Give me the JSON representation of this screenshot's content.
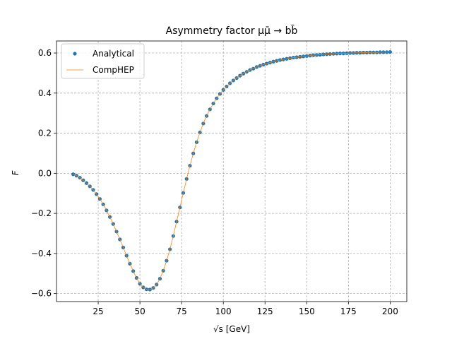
{
  "chart_data": {
    "type": "scatter",
    "title": "Asymmetry factor μμ̄ → bb̄",
    "xlabel": "√s [GeV]",
    "ylabel": "F",
    "xlim": [
      0,
      210
    ],
    "ylim": [
      -0.64,
      0.66
    ],
    "xticks": [
      25,
      50,
      75,
      100,
      125,
      150,
      175,
      200
    ],
    "yticks": [
      -0.6,
      -0.4,
      -0.2,
      0.0,
      0.2,
      0.4,
      0.6
    ],
    "xtick_labels": [
      "25",
      "50",
      "75",
      "100",
      "125",
      "150",
      "175",
      "200"
    ],
    "ytick_labels": [
      "−0.6",
      "−0.4",
      "−0.2",
      "0.0",
      "0.2",
      "0.4",
      "0.6"
    ],
    "grid": true,
    "legend_position": "top-left",
    "legend": [
      "Analytical",
      "CompHEP"
    ],
    "series": [
      {
        "name": "Analytical",
        "style": "markers",
        "color": "#1f77b4",
        "x": [
          10,
          12,
          14,
          16,
          18,
          20,
          22,
          24,
          26,
          28,
          30,
          32,
          34,
          36,
          38,
          40,
          42,
          44,
          46,
          48,
          50,
          52,
          54,
          56,
          58,
          60,
          62,
          64,
          66,
          68,
          70,
          72,
          74,
          76,
          78,
          80,
          82,
          84,
          86,
          88,
          90,
          92,
          94,
          96,
          98,
          100,
          102,
          104,
          106,
          108,
          110,
          112,
          114,
          116,
          118,
          120,
          122,
          124,
          126,
          128,
          130,
          132,
          134,
          136,
          138,
          140,
          142,
          144,
          146,
          148,
          150,
          152,
          154,
          156,
          158,
          160,
          162,
          164,
          166,
          168,
          170,
          172,
          174,
          176,
          178,
          180,
          182,
          184,
          186,
          188,
          190,
          192,
          194,
          196,
          198,
          200
        ],
        "y": [
          -0.005,
          -0.012,
          -0.022,
          -0.035,
          -0.049,
          -0.065,
          -0.083,
          -0.104,
          -0.128,
          -0.155,
          -0.185,
          -0.218,
          -0.253,
          -0.291,
          -0.33,
          -0.37,
          -0.411,
          -0.451,
          -0.488,
          -0.522,
          -0.551,
          -0.569,
          -0.579,
          -0.58,
          -0.572,
          -0.555,
          -0.526,
          -0.486,
          -0.436,
          -0.379,
          -0.313,
          -0.241,
          -0.17,
          -0.098,
          -0.028,
          0.038,
          0.099,
          0.155,
          0.204,
          0.248,
          0.286,
          0.319,
          0.348,
          0.374,
          0.396,
          0.416,
          0.433,
          0.449,
          0.463,
          0.475,
          0.487,
          0.497,
          0.506,
          0.515,
          0.522,
          0.53,
          0.536,
          0.542,
          0.547,
          0.552,
          0.557,
          0.561,
          0.565,
          0.568,
          0.571,
          0.574,
          0.577,
          0.579,
          0.581,
          0.583,
          0.585,
          0.587,
          0.589,
          0.59,
          0.591,
          0.593,
          0.594,
          0.595,
          0.596,
          0.597,
          0.598,
          0.598,
          0.599,
          0.6,
          0.6,
          0.601,
          0.601,
          0.602,
          0.602,
          0.603,
          0.603,
          0.603,
          0.604,
          0.604,
          0.604,
          0.605
        ]
      },
      {
        "name": "CompHEP",
        "style": "line",
        "color": "#ff7f0e",
        "x": [
          10,
          12,
          14,
          16,
          18,
          20,
          22,
          24,
          26,
          28,
          30,
          32,
          34,
          36,
          38,
          40,
          42,
          44,
          46,
          48,
          50,
          52,
          54,
          56,
          58,
          60,
          62,
          64,
          66,
          68,
          70,
          72,
          74,
          76,
          78,
          80,
          82,
          84,
          86,
          88,
          90,
          92,
          94,
          96,
          98,
          100,
          102,
          104,
          106,
          108,
          110,
          112,
          114,
          116,
          118,
          120,
          122,
          124,
          126,
          128,
          130,
          132,
          134,
          136,
          138,
          140,
          142,
          144,
          146,
          148,
          150,
          152,
          154,
          156,
          158,
          160,
          162,
          164,
          166,
          168,
          170,
          172,
          174,
          176,
          178,
          180,
          182,
          184,
          186,
          188,
          190,
          192,
          194,
          196,
          198,
          200
        ],
        "y": [
          -0.005,
          -0.012,
          -0.022,
          -0.035,
          -0.049,
          -0.065,
          -0.083,
          -0.104,
          -0.128,
          -0.155,
          -0.185,
          -0.218,
          -0.253,
          -0.291,
          -0.33,
          -0.37,
          -0.411,
          -0.451,
          -0.488,
          -0.522,
          -0.551,
          -0.569,
          -0.579,
          -0.58,
          -0.572,
          -0.555,
          -0.526,
          -0.486,
          -0.436,
          -0.379,
          -0.313,
          -0.241,
          -0.17,
          -0.098,
          -0.028,
          0.038,
          0.099,
          0.155,
          0.204,
          0.248,
          0.286,
          0.319,
          0.348,
          0.374,
          0.396,
          0.416,
          0.433,
          0.449,
          0.463,
          0.475,
          0.487,
          0.497,
          0.506,
          0.515,
          0.522,
          0.53,
          0.536,
          0.542,
          0.547,
          0.552,
          0.557,
          0.561,
          0.565,
          0.568,
          0.571,
          0.574,
          0.577,
          0.579,
          0.581,
          0.583,
          0.585,
          0.587,
          0.589,
          0.59,
          0.591,
          0.593,
          0.594,
          0.595,
          0.596,
          0.597,
          0.598,
          0.598,
          0.599,
          0.6,
          0.6,
          0.601,
          0.601,
          0.602,
          0.602,
          0.603,
          0.603,
          0.603,
          0.604,
          0.604,
          0.604,
          0.605
        ]
      }
    ]
  }
}
